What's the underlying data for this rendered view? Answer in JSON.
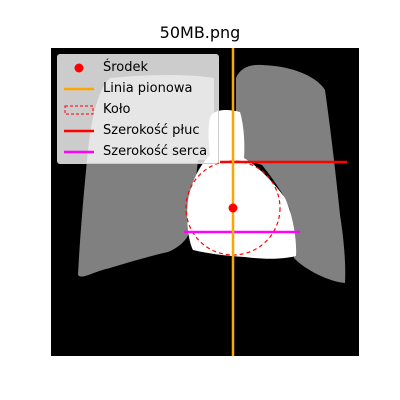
{
  "figure": {
    "title": "50MB.png"
  },
  "legend": {
    "items": [
      {
        "key": "center",
        "label": "Środek",
        "symbol": "dot",
        "color": "#ff0000"
      },
      {
        "key": "vertical",
        "label": "Linia pionowa",
        "symbol": "line",
        "color": "#ffa500"
      },
      {
        "key": "circle",
        "label": "Koło",
        "symbol": "dashed-box",
        "color": "#ff0000"
      },
      {
        "key": "lung",
        "label": "Szerokość płuc",
        "symbol": "line",
        "color": "#ff0000"
      },
      {
        "key": "heart",
        "label": "Szerokość serca",
        "symbol": "line",
        "color": "#ff00ff"
      }
    ]
  },
  "colors": {
    "background": "#000000",
    "lung": "#808080",
    "heart": "#ffffff"
  }
}
